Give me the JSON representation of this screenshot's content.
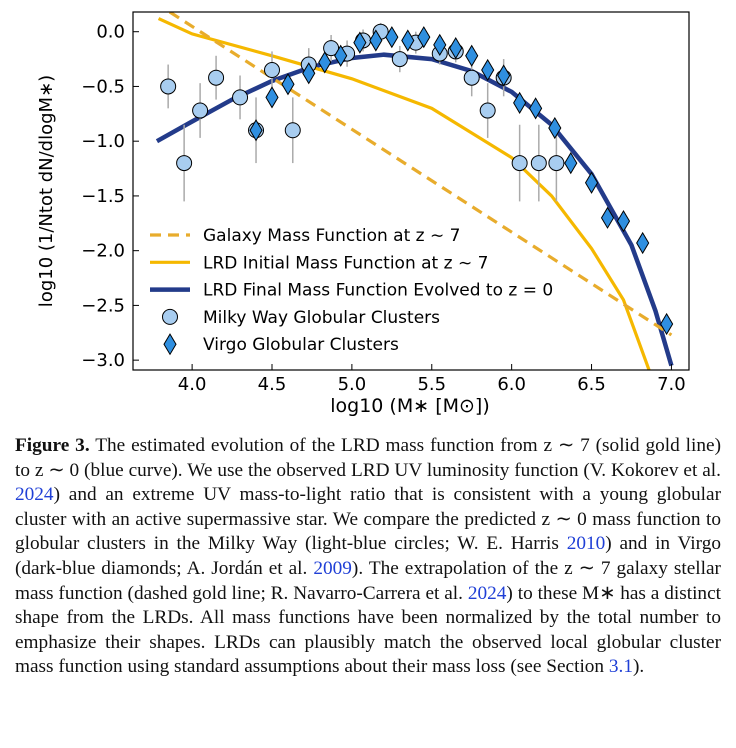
{
  "chart_data": {
    "type": "line",
    "xlabel": "log10 (M∗ [M⊙])",
    "ylabel": "log10 (1/Ntot dN/dlogM∗)",
    "xlim": [
      3.63,
      7.11
    ],
    "ylim": [
      -3.09,
      0.18
    ],
    "xticks": [
      {
        "value": 4,
        "label": "4.0"
      },
      {
        "value": 4.5,
        "label": "4.5"
      },
      {
        "value": 5,
        "label": "5.0"
      },
      {
        "value": 5.5,
        "label": "5.5"
      },
      {
        "value": 6,
        "label": "6.0"
      },
      {
        "value": 6.5,
        "label": "6.5"
      },
      {
        "value": 7,
        "label": "7.0"
      }
    ],
    "yticks": [
      {
        "value": 0,
        "label": "0.0"
      },
      {
        "value": -0.5,
        "label": "−0.5"
      },
      {
        "value": -1,
        "label": "−1.0"
      },
      {
        "value": -1.5,
        "label": "−1.5"
      },
      {
        "value": -2,
        "label": "−2.0"
      },
      {
        "value": -2.5,
        "label": "−2.5"
      },
      {
        "value": -3,
        "label": "−3.0"
      }
    ],
    "legend": "lower left",
    "series": [
      {
        "name": "Galaxy Mass Function at z ∼ 7",
        "kind": "line",
        "style": "dashed",
        "color": "#e8ac2c",
        "x": [
          3.86,
          7.0
        ],
        "values": [
          0.18,
          -2.77
        ]
      },
      {
        "name": "LRD Initial Mass Function at z ∼ 7",
        "kind": "line",
        "style": "solid",
        "color": "#f5b800",
        "x": [
          3.79,
          4.0,
          4.5,
          5.0,
          5.5,
          6.0,
          6.25,
          6.5,
          6.7,
          6.86
        ],
        "values": [
          0.12,
          -0.02,
          -0.22,
          -0.43,
          -0.7,
          -1.15,
          -1.5,
          -1.98,
          -2.45,
          -3.09
        ]
      },
      {
        "name": "LRD Final Mass Function Evolved to z = 0",
        "kind": "line",
        "style": "solid",
        "color": "#233b8a",
        "x": [
          3.78,
          4.0,
          4.25,
          4.5,
          4.75,
          5.0,
          5.2,
          5.5,
          5.75,
          6.0,
          6.25,
          6.5,
          6.75,
          6.9,
          7.0
        ],
        "values": [
          -1.0,
          -0.82,
          -0.62,
          -0.45,
          -0.32,
          -0.24,
          -0.21,
          -0.25,
          -0.36,
          -0.55,
          -0.85,
          -1.3,
          -1.95,
          -2.55,
          -3.05
        ]
      },
      {
        "name": "Milky Way Globular Clusters",
        "kind": "scatter",
        "marker": "circle",
        "color": "#a8cdf0",
        "x": [
          3.85,
          3.95,
          4.05,
          4.15,
          4.3,
          4.4,
          4.5,
          4.63,
          4.73,
          4.87,
          4.97,
          5.07,
          5.18,
          5.3,
          5.4,
          5.55,
          5.65,
          5.75,
          5.85,
          5.95,
          6.05,
          6.17,
          6.28
        ],
        "values": [
          -0.5,
          -1.2,
          -0.72,
          -0.42,
          -0.6,
          -0.9,
          -0.35,
          -0.9,
          -0.3,
          -0.15,
          -0.2,
          -0.08,
          0.0,
          -0.25,
          -0.1,
          -0.2,
          -0.18,
          -0.42,
          -0.72,
          -0.42,
          -1.2,
          -1.2,
          -1.2
        ],
        "errors": [
          0.2,
          0.35,
          0.25,
          0.2,
          0.2,
          0.3,
          0.17,
          0.3,
          0.15,
          0.12,
          0.12,
          0.1,
          0.08,
          0.12,
          0.1,
          0.1,
          0.1,
          0.17,
          0.25,
          0.17,
          0.35,
          0.35,
          0.35
        ]
      },
      {
        "name": "Virgo Globular Clusters",
        "kind": "scatter",
        "marker": "diamond",
        "color": "#2f8fe0",
        "x": [
          4.4,
          4.5,
          4.6,
          4.73,
          4.83,
          4.93,
          5.05,
          5.15,
          5.25,
          5.35,
          5.45,
          5.55,
          5.65,
          5.75,
          5.85,
          5.95,
          6.05,
          6.15,
          6.27,
          6.37,
          6.5,
          6.6,
          6.7,
          6.82,
          6.97
        ],
        "values": [
          -0.9,
          -0.6,
          -0.48,
          -0.38,
          -0.28,
          -0.22,
          -0.1,
          -0.08,
          -0.05,
          -0.08,
          -0.05,
          -0.12,
          -0.15,
          -0.22,
          -0.35,
          -0.4,
          -0.65,
          -0.7,
          -0.88,
          -1.2,
          -1.38,
          -1.7,
          -1.73,
          -1.93,
          -2.67
        ]
      }
    ]
  },
  "caption": {
    "label": "Figure 3.",
    "runs": [
      {
        "text": " The estimated evolution of the LRD mass function from z ∼ 7 (solid gold line) to z ∼ 0 (blue curve). We use the observed LRD UV luminosity function (V. Kokorev et al. "
      },
      {
        "text": "2024",
        "link": true
      },
      {
        "text": ") and an extreme UV mass-to-light ratio that is consistent with a young globular cluster with an active supermassive star. We compare the predicted z ∼ 0 mass function to globular clusters in the Milky Way (light-blue circles; W. E. Harris "
      },
      {
        "text": "2010",
        "link": true
      },
      {
        "text": ") and in Virgo (dark-blue diamonds; A. Jordán et al. "
      },
      {
        "text": "2009",
        "link": true
      },
      {
        "text": "). The extrapolation of the z ∼ 7 galaxy stellar mass function (dashed gold line; R. Navarro-Carrera et al. "
      },
      {
        "text": "2024",
        "link": true
      },
      {
        "text": ") to these M∗ has a distinct shape from the LRDs. All mass functions have been normalized by the total number to emphasize their shapes. LRDs can plausibly match the observed local globular cluster mass function using standard assumptions about their mass loss (see Section "
      },
      {
        "text": "3.1",
        "link": true
      },
      {
        "text": ")."
      }
    ]
  }
}
